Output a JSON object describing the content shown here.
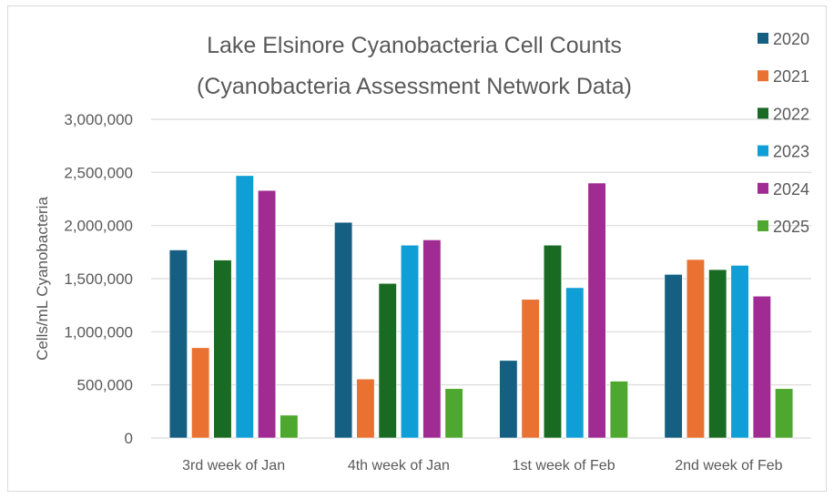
{
  "chart_data": {
    "type": "bar",
    "title": "Lake Elsinore Cyanobacteria Cell Counts",
    "subtitle": "(Cyanobacteria Assessment Network Data)",
    "xlabel": "",
    "ylabel": "Cells/mL Cyanobacteria",
    "ylim": [
      0,
      3000000
    ],
    "yticks": [
      0,
      500000,
      1000000,
      1500000,
      2000000,
      2500000,
      3000000
    ],
    "ytick_labels": [
      "0",
      "500,000",
      "1,000,000",
      "1,500,000",
      "2,000,000",
      "2,500,000",
      "3,000,000"
    ],
    "grid": true,
    "legend_position": "right",
    "categories": [
      "3rd week of Jan",
      "4th week of Jan",
      "1st week of Feb",
      "2nd week of Feb"
    ],
    "series": [
      {
        "name": "2020",
        "color": "#156082",
        "values": [
          1770000,
          2030000,
          730000,
          1540000
        ]
      },
      {
        "name": "2021",
        "color": "#E97132",
        "values": [
          850000,
          555000,
          1305000,
          1680000
        ]
      },
      {
        "name": "2022",
        "color": "#196B24",
        "values": [
          1675000,
          1455000,
          1815000,
          1585000
        ]
      },
      {
        "name": "2023",
        "color": "#0F9ED5",
        "values": [
          2470000,
          1815000,
          1415000,
          1625000
        ]
      },
      {
        "name": "2024",
        "color": "#A02B93",
        "values": [
          2330000,
          1865000,
          2400000,
          1335000
        ]
      },
      {
        "name": "2025",
        "color": "#4EA72E",
        "values": [
          215000,
          465000,
          535000,
          465000
        ]
      }
    ]
  }
}
